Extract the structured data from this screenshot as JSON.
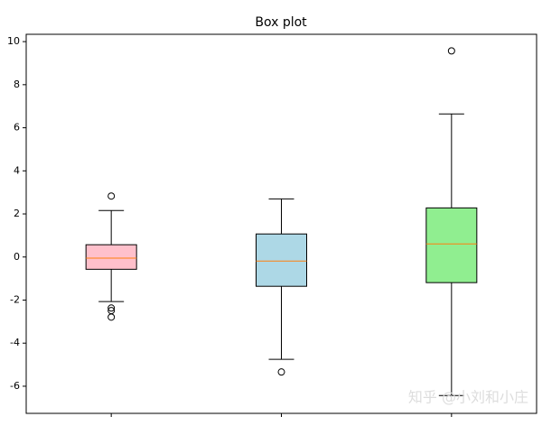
{
  "chart_data": {
    "type": "box",
    "title": "Box plot",
    "categories": [
      null,
      null,
      null
    ],
    "boxes": [
      {
        "color": "#ffc0cb",
        "q1": -0.57,
        "median": -0.05,
        "q3": 0.57,
        "whisker_low": -2.07,
        "whisker_high": 2.16,
        "outliers": [
          2.83,
          -2.37,
          -2.49,
          -2.79
        ]
      },
      {
        "color": "#add8e6",
        "q1": -1.36,
        "median": -0.19,
        "q3": 1.07,
        "whisker_low": -4.75,
        "whisker_high": 2.7,
        "outliers": [
          -5.34
        ]
      },
      {
        "color": "#90ee90",
        "q1": -1.19,
        "median": 0.61,
        "q3": 2.28,
        "whisker_low": -6.43,
        "whisker_high": 6.64,
        "outliers": [
          9.57
        ]
      }
    ],
    "median_color": "#ff7f0e",
    "ylim": [
      -7.26,
      10.34
    ],
    "yticks": [
      -6,
      -4,
      -2,
      0,
      2,
      4,
      6,
      8,
      10
    ],
    "watermark": "知乎 @小刘和小庄"
  }
}
